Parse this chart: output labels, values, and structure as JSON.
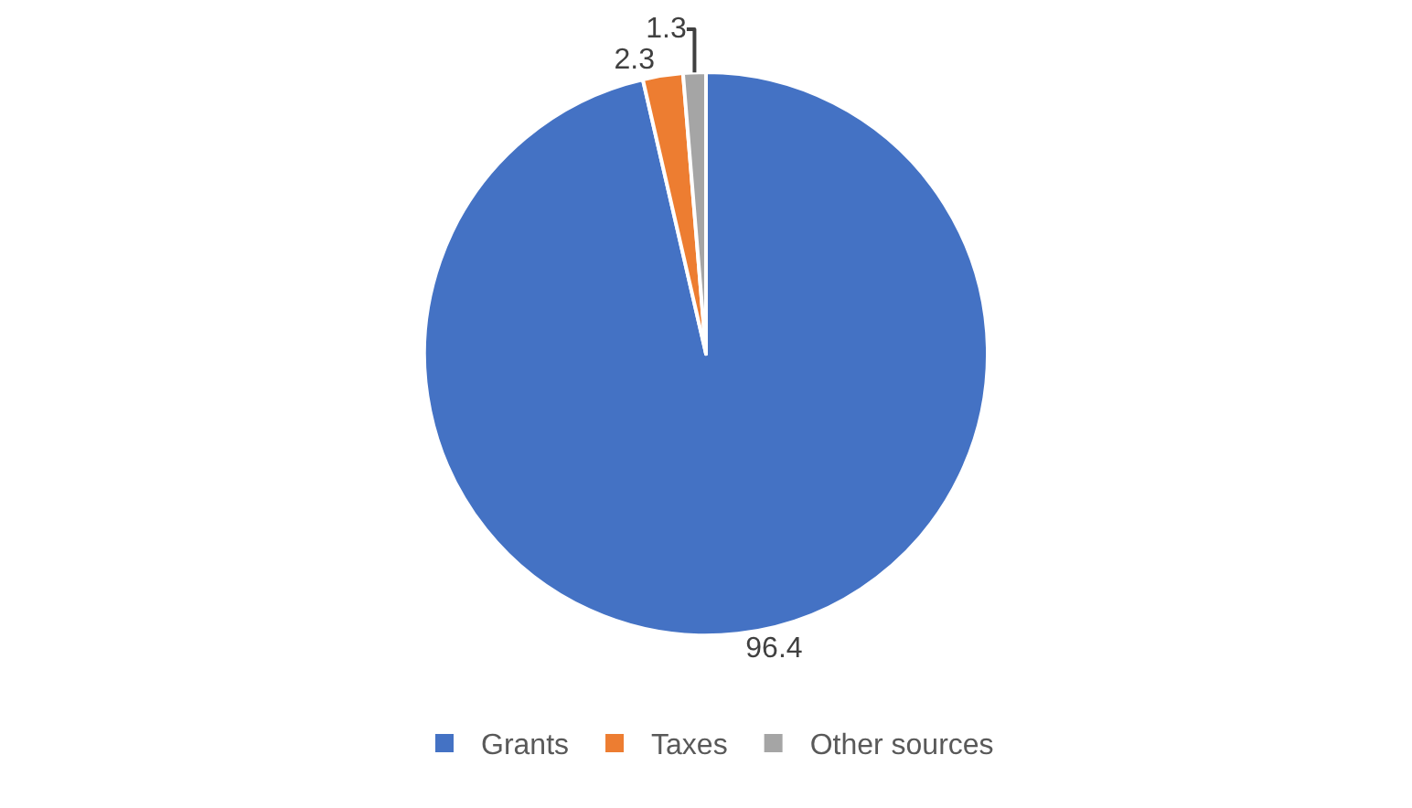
{
  "chart_data": {
    "type": "pie",
    "categories": [
      "Grants",
      "Taxes",
      "Other sources"
    ],
    "values": [
      96.4,
      2.3,
      1.3
    ],
    "colors": [
      "#4472c4",
      "#ed7d31",
      "#a5a5a5"
    ],
    "data_labels": true,
    "legend": "bottom"
  }
}
